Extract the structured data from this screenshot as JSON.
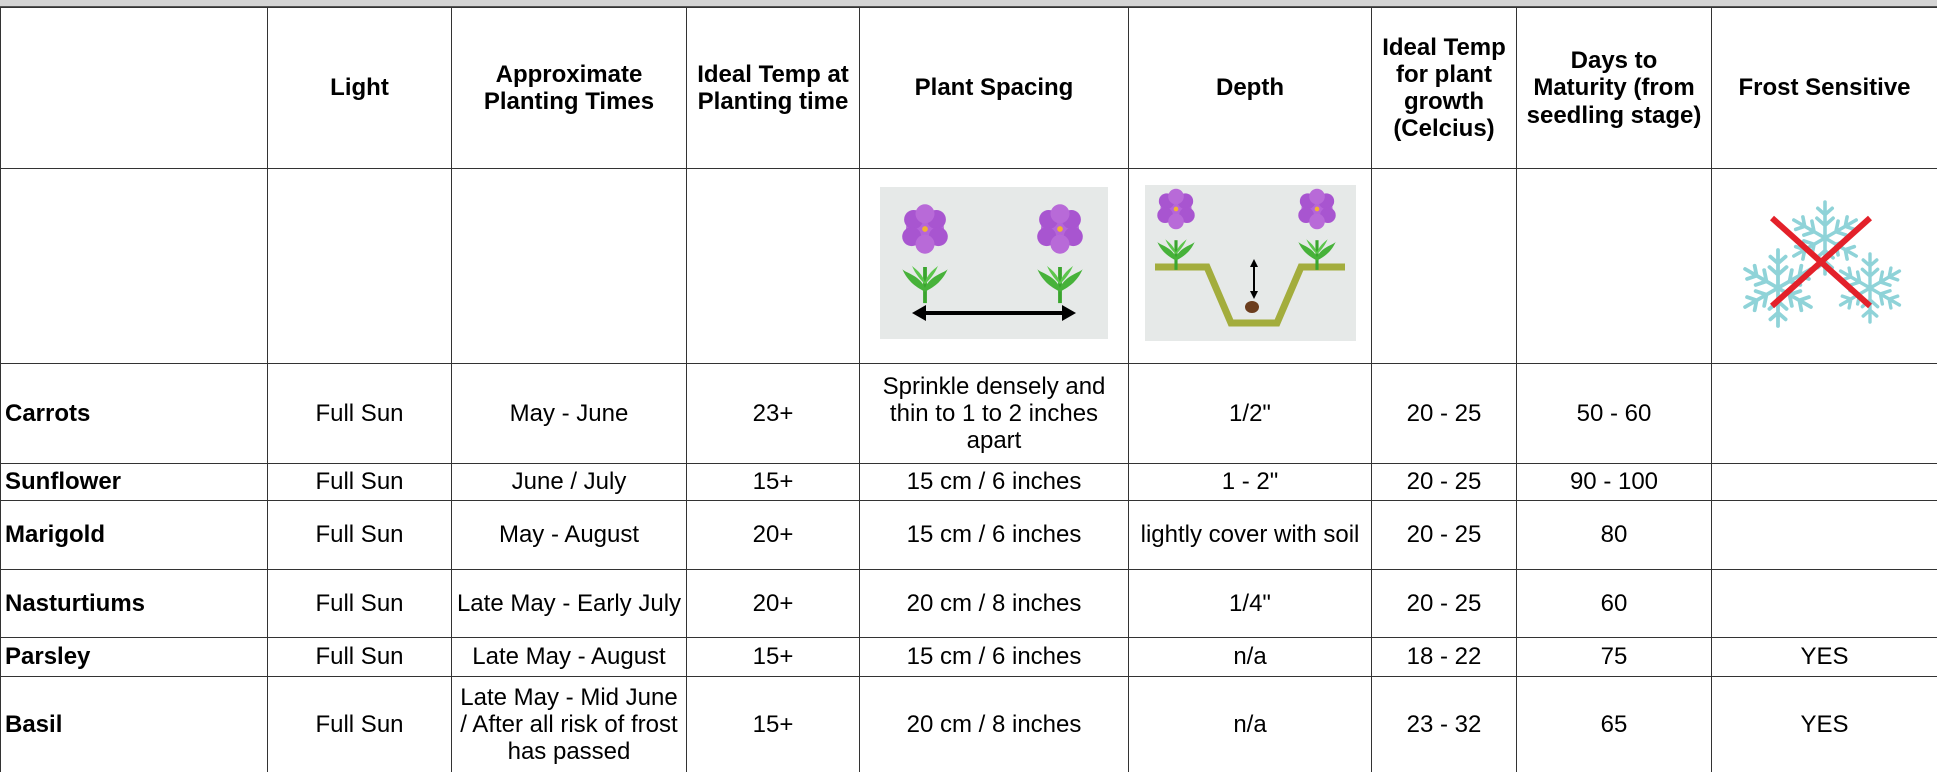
{
  "table": {
    "headers": [
      "Light",
      "Approximate Planting Times",
      "Ideal Temp at Planting time",
      "Plant Spacing",
      "Depth",
      "Ideal Temp for plant growth (Celcius)",
      "Days to Maturity (from seedling stage)",
      "Frost Sensitive"
    ],
    "rows": [
      {
        "name": "Carrots",
        "cells": [
          "Full Sun",
          "May - June",
          "23+",
          "Sprinkle densely and thin to 1 to 2 inches apart",
          "1/2\"",
          "20 - 25",
          "50 - 60",
          null
        ]
      },
      {
        "name": "Sunflower",
        "cells": [
          "Full Sun",
          "June / July",
          "15+",
          "15 cm / 6 inches",
          "1 - 2\"",
          "20 - 25",
          "90 - 100",
          null
        ]
      },
      {
        "name": "Marigold",
        "cells": [
          "Full Sun",
          "May - August",
          "20+",
          "15 cm / 6 inches",
          "lightly cover with soil",
          "20 - 25",
          "80",
          null
        ]
      },
      {
        "name": "Nasturtiums",
        "cells": [
          "Full Sun",
          "Late May - Early July",
          "20+",
          "20 cm / 8 inches",
          "1/4\"",
          "20 - 25",
          "60",
          null
        ]
      },
      {
        "name": "Parsley",
        "cells": [
          "Full Sun",
          "Late May - August",
          "15+",
          "15 cm / 6 inches",
          "n/a",
          "18 - 22",
          "75",
          "YES"
        ]
      },
      {
        "name": "Basil",
        "cells": [
          "Full Sun",
          "Late May - Mid June / After all risk of frost has passed",
          "15+",
          "20 cm / 8 inches",
          "n/a",
          "23 - 32",
          "65",
          "YES"
        ]
      }
    ]
  }
}
